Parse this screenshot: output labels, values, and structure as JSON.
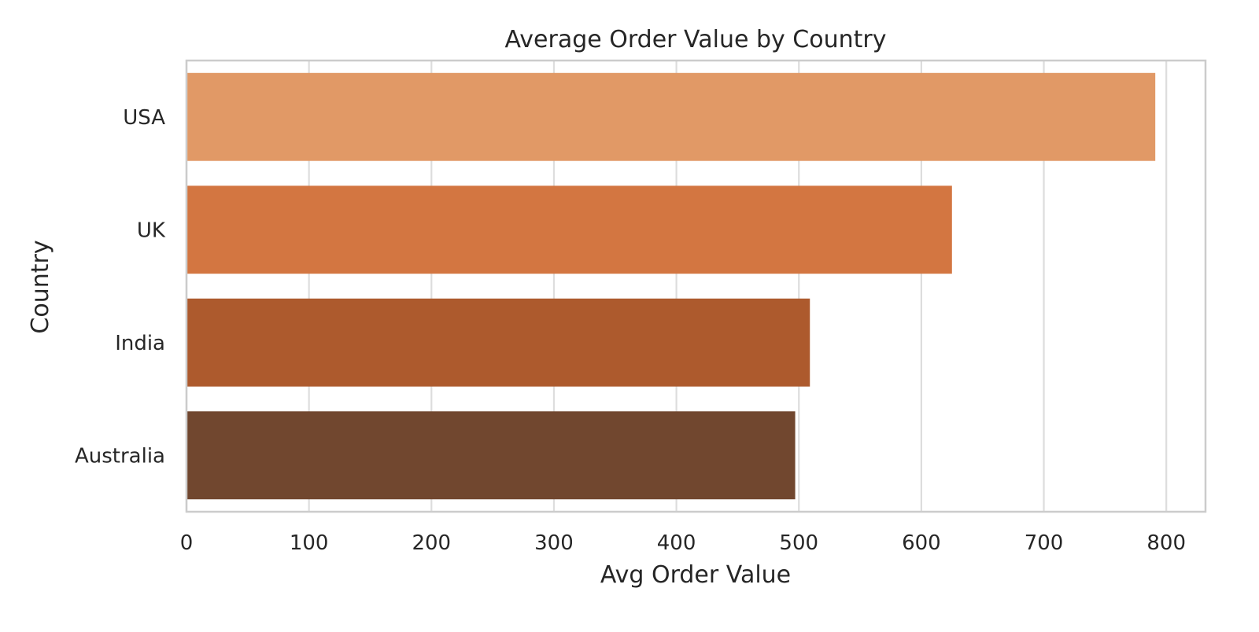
{
  "chart_data": {
    "type": "bar",
    "orientation": "horizontal",
    "title": "Average Order Value by Country",
    "xlabel": "Avg Order Value",
    "ylabel": "Country",
    "categories": [
      "USA",
      "UK",
      "India",
      "Australia"
    ],
    "values": [
      791,
      625,
      509,
      497
    ],
    "xlim": [
      0,
      832
    ],
    "xticks": [
      0,
      100,
      200,
      300,
      400,
      500,
      600,
      700,
      800
    ],
    "grid": true,
    "legend": "none",
    "colors": [
      "#e19966",
      "#d37641",
      "#ad5a2d",
      "#71472f"
    ]
  }
}
